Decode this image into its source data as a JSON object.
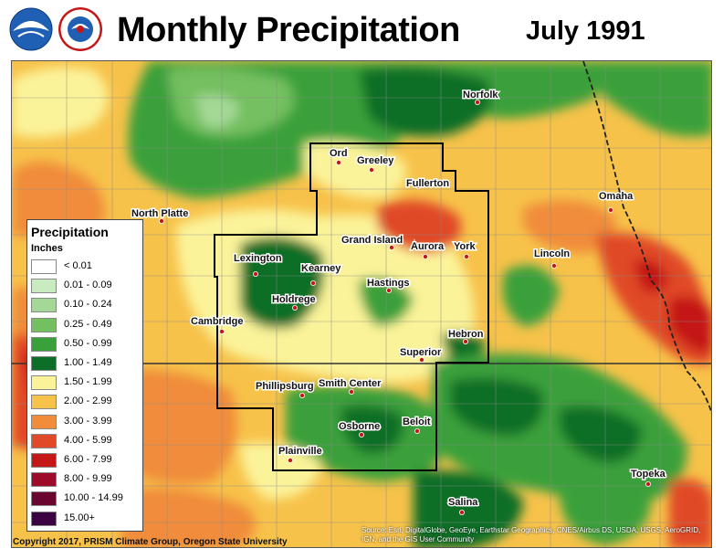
{
  "header": {
    "title": "Monthly Precipitation",
    "date": "July 1991"
  },
  "legend": {
    "title": "Precipitation",
    "unit": "Inches",
    "items": [
      {
        "label": "< 0.01",
        "color": "#ffffff"
      },
      {
        "label": "0.01 - 0.09",
        "color": "#c8ecc0"
      },
      {
        "label": "0.10 - 0.24",
        "color": "#a4d896"
      },
      {
        "label": "0.25 - 0.49",
        "color": "#74c060"
      },
      {
        "label": "0.50 - 0.99",
        "color": "#3aa03a"
      },
      {
        "label": "1.00 - 1.49",
        "color": "#0d6e28"
      },
      {
        "label": "1.50 - 1.99",
        "color": "#fbf39a"
      },
      {
        "label": "2.00 - 2.99",
        "color": "#f7c24a"
      },
      {
        "label": "3.00 - 3.99",
        "color": "#f08c3a"
      },
      {
        "label": "4.00 - 5.99",
        "color": "#e04a28"
      },
      {
        "label": "6.00 - 7.99",
        "color": "#c41818"
      },
      {
        "label": "8.00 - 9.99",
        "color": "#9e0a2a"
      },
      {
        "label": "10.00 - 14.99",
        "color": "#6a0530"
      },
      {
        "label": "15.00+",
        "color": "#3a0240"
      }
    ]
  },
  "cities": {
    "ord": "Ord",
    "greeley": "Greeley",
    "norfolk": "Norfolk",
    "fullerton": "Fullerton",
    "north_platte": "North Platte",
    "omaha": "Omaha",
    "grand_island": "Grand Island",
    "aurora": "Aurora",
    "york": "York",
    "lincoln": "Lincoln",
    "lexington": "Lexington",
    "kearney": "Kearney",
    "hastings": "Hastings",
    "holdrege": "Holdrege",
    "cambridge": "Cambridge",
    "hebron": "Hebron",
    "superior": "Superior",
    "phillipsburg": "Phillipsburg",
    "smith_center": "Smith Center",
    "osborne": "Osborne",
    "beloit": "Beloit",
    "plainville": "Plainville",
    "topeka": "Topeka",
    "salina": "Salina"
  },
  "footer": {
    "copyright": "Copyright 2017, PRISM Climate Group, Oregon State University",
    "sources": "Source: Esri, DigitalGlobe, GeoEye, Earthstar Geographics, CNES/Airbus DS, USDA, USGS, AeroGRID, IGN, and the GIS User Community"
  }
}
